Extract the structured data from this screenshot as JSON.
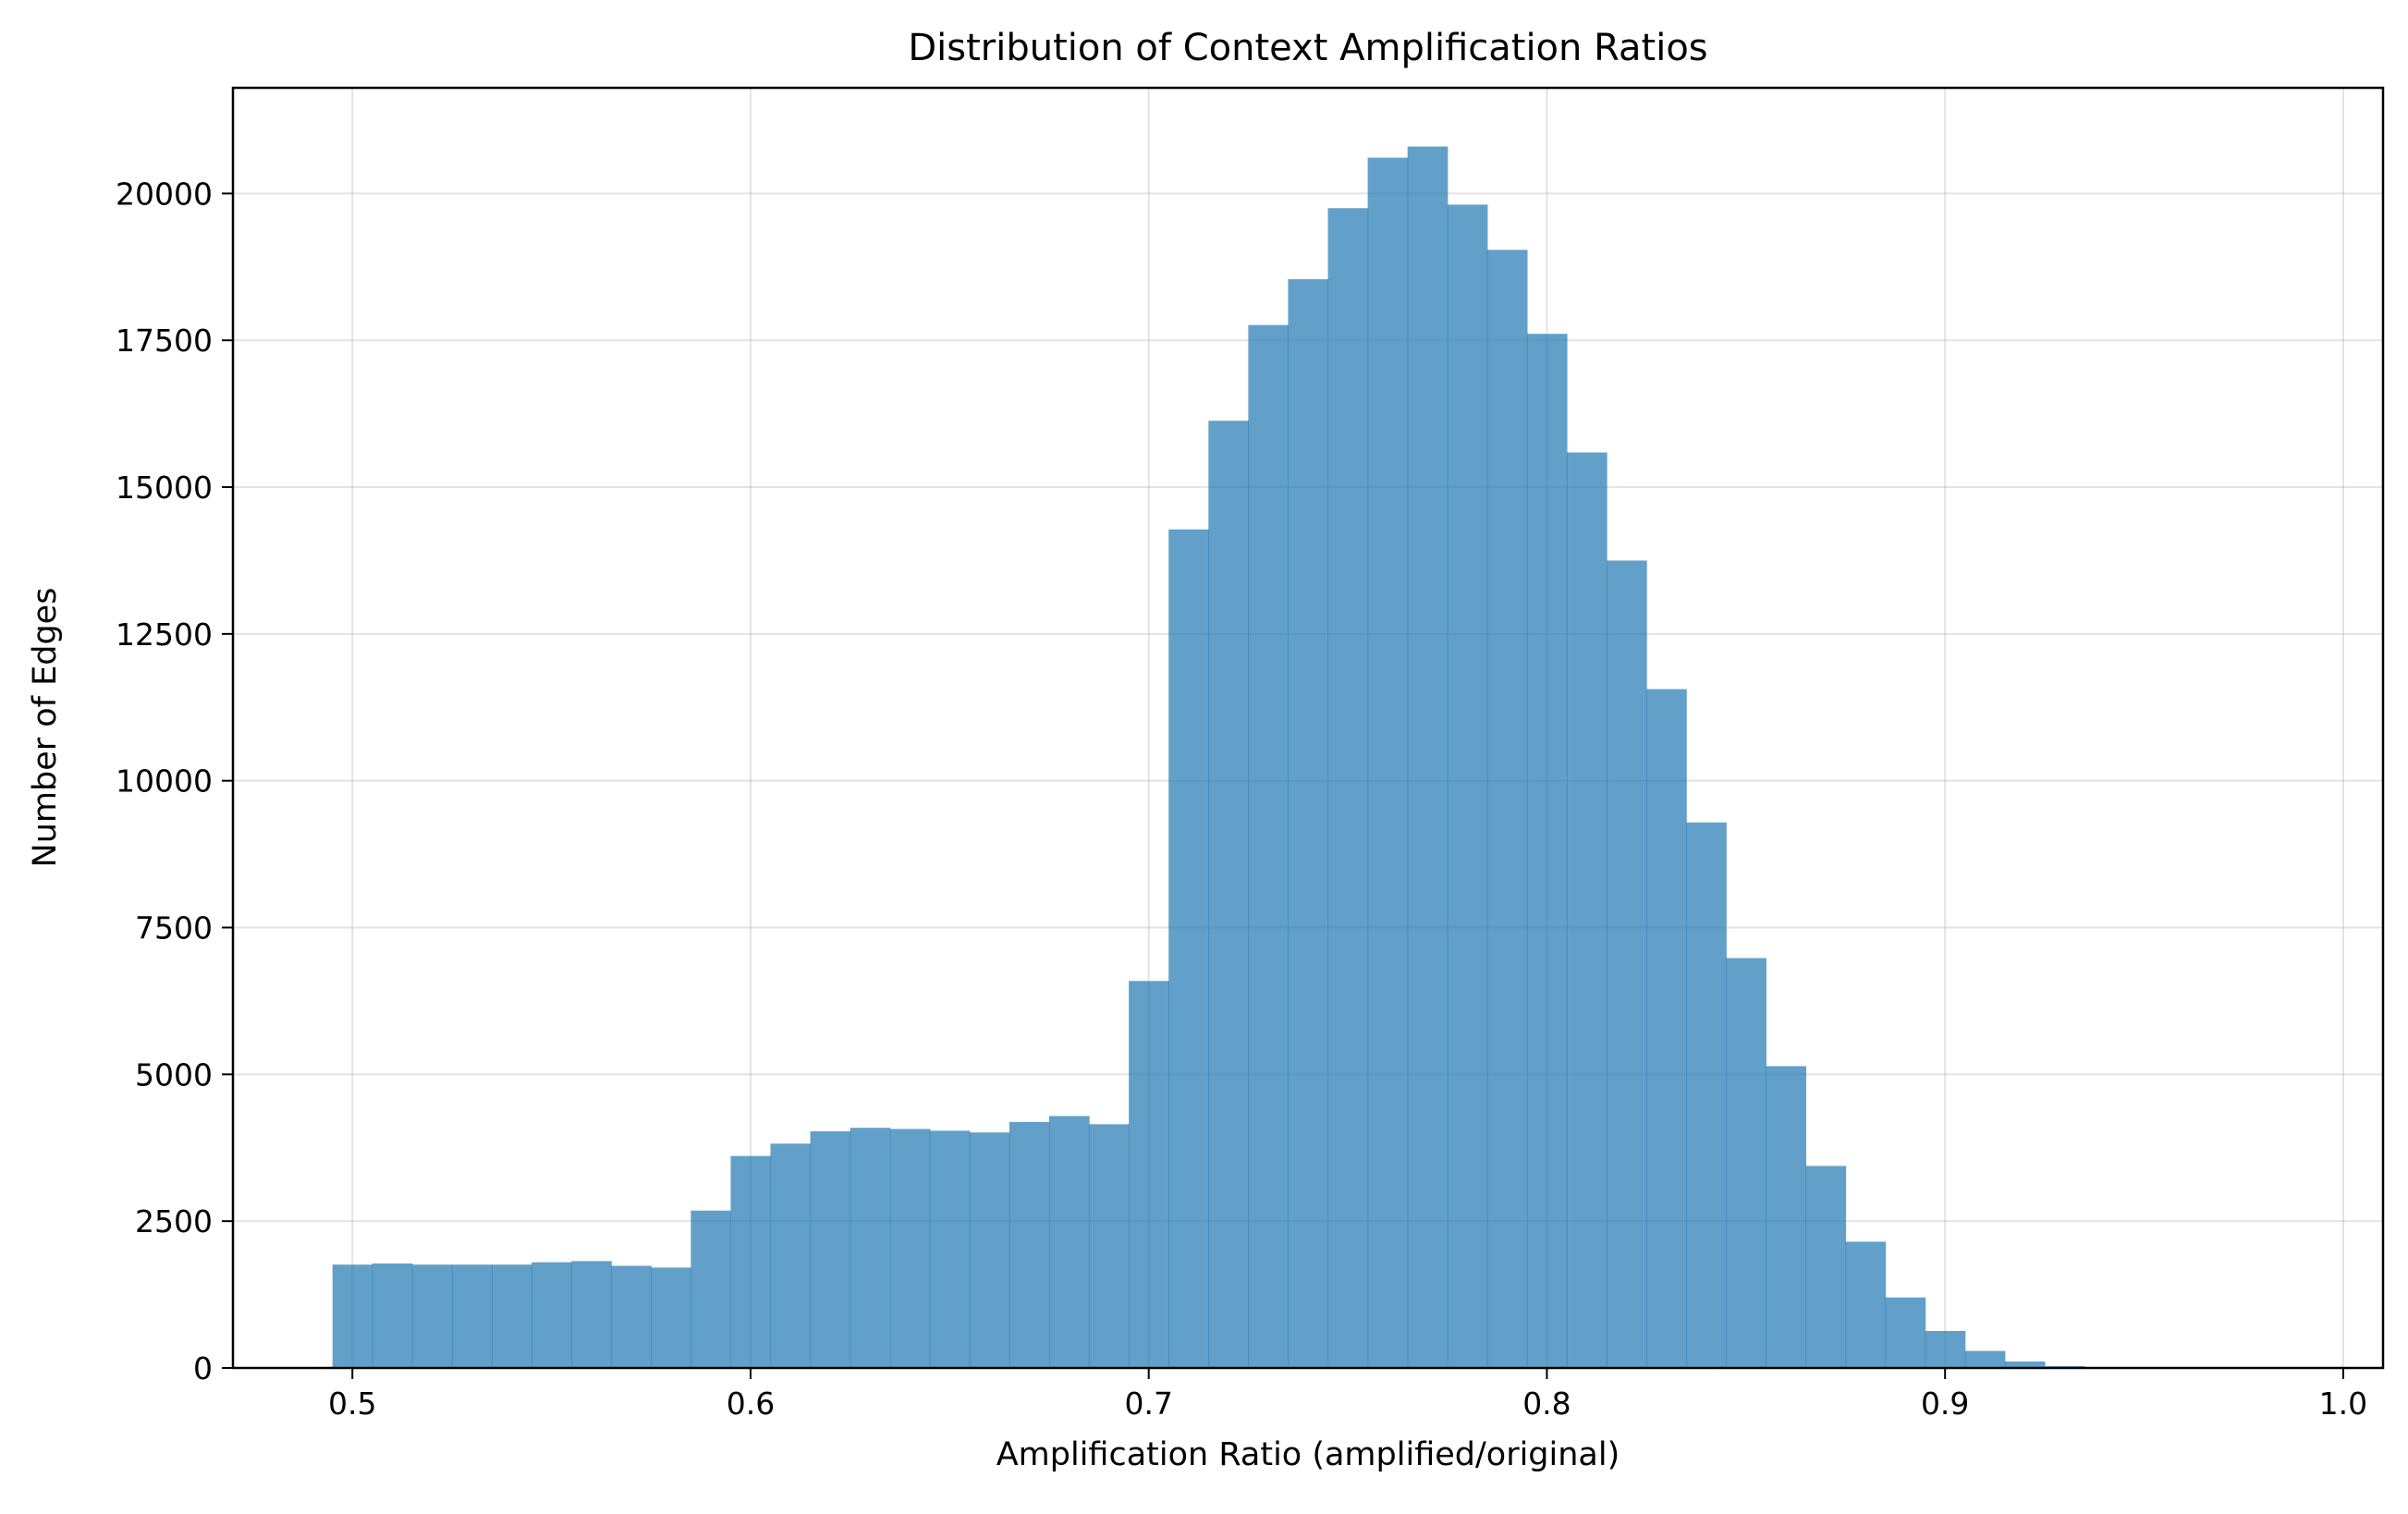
{
  "chart_data": {
    "type": "bar",
    "subtype": "histogram",
    "title": "Distribution of Context Amplification Ratios",
    "xlabel": "Amplification Ratio (amplified/original)",
    "ylabel": "Number of Edges",
    "xlim": [
      0.47,
      1.01
    ],
    "ylim": [
      0,
      21800
    ],
    "grid": true,
    "bar_color": "#1f77b4",
    "bar_opacity": 0.7,
    "x_ticks": [
      {
        "value": 0.5,
        "label": "0.5"
      },
      {
        "value": 0.6,
        "label": "0.6"
      },
      {
        "value": 0.7,
        "label": "0.7"
      },
      {
        "value": 0.8,
        "label": "0.8"
      },
      {
        "value": 0.9,
        "label": "0.9"
      },
      {
        "value": 1.0,
        "label": "1.0"
      }
    ],
    "y_ticks": [
      {
        "value": 0,
        "label": "0"
      },
      {
        "value": 2500,
        "label": "2500"
      },
      {
        "value": 5000,
        "label": "5000"
      },
      {
        "value": 7500,
        "label": "7500"
      },
      {
        "value": 10000,
        "label": "10000"
      },
      {
        "value": 12500,
        "label": "12500"
      },
      {
        "value": 15000,
        "label": "15000"
      },
      {
        "value": 17500,
        "label": "17500"
      },
      {
        "value": 20000,
        "label": "20000"
      }
    ],
    "bin_edges": [
      0.495,
      0.505,
      0.515,
      0.525,
      0.535,
      0.545,
      0.555,
      0.565,
      0.575,
      0.585,
      0.595,
      0.605,
      0.615,
      0.625,
      0.635,
      0.645,
      0.655,
      0.665,
      0.675,
      0.685,
      0.695,
      0.705,
      0.715,
      0.725,
      0.735,
      0.745,
      0.755,
      0.765,
      0.775,
      0.785,
      0.795,
      0.805,
      0.815,
      0.825,
      0.835,
      0.845,
      0.855,
      0.865,
      0.875,
      0.885,
      0.895,
      0.905,
      0.915,
      0.925,
      0.935,
      0.945,
      0.955,
      0.965,
      0.975,
      0.985
    ],
    "counts": [
      1760,
      1780,
      1760,
      1760,
      1760,
      1800,
      1820,
      1740,
      1710,
      2680,
      3610,
      3820,
      4030,
      4090,
      4070,
      4040,
      4010,
      4190,
      4290,
      4150,
      6590,
      14280,
      16130,
      17760,
      18540,
      19750,
      20610,
      20800,
      19810,
      19040,
      17610,
      15590,
      13750,
      11560,
      9290,
      6980,
      5140,
      3440,
      2150,
      1200,
      630,
      290,
      110,
      30,
      10,
      5,
      3,
      2,
      1
    ]
  }
}
